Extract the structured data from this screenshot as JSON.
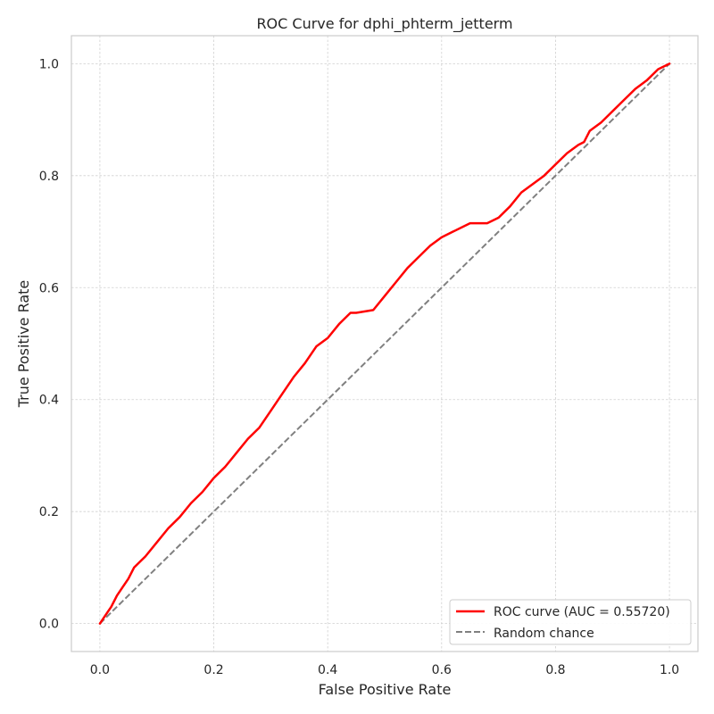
{
  "chart_data": {
    "type": "line",
    "title": "ROC Curve for dphi_phterm_jetterm",
    "xlabel": "False Positive Rate",
    "ylabel": "True Positive Rate",
    "xlim": [
      -0.05,
      1.05
    ],
    "ylim": [
      -0.05,
      1.05
    ],
    "xticks": [
      0.0,
      0.2,
      0.4,
      0.6,
      0.8,
      1.0
    ],
    "yticks": [
      0.0,
      0.2,
      0.4,
      0.6,
      0.8,
      1.0
    ],
    "xtick_labels": [
      "0.0",
      "0.2",
      "0.4",
      "0.6",
      "0.8",
      "1.0"
    ],
    "ytick_labels": [
      "0.0",
      "0.2",
      "0.4",
      "0.6",
      "0.8",
      "1.0"
    ],
    "grid": true,
    "legend_position": "bottom-right",
    "series": [
      {
        "name": "ROC curve (AUC = 0.55720)",
        "color": "#ff0000",
        "style": "solid",
        "x": [
          0.0,
          0.01,
          0.02,
          0.03,
          0.04,
          0.05,
          0.06,
          0.07,
          0.08,
          0.1,
          0.12,
          0.14,
          0.16,
          0.18,
          0.2,
          0.22,
          0.24,
          0.26,
          0.28,
          0.3,
          0.32,
          0.34,
          0.36,
          0.38,
          0.4,
          0.42,
          0.44,
          0.45,
          0.48,
          0.5,
          0.52,
          0.54,
          0.56,
          0.58,
          0.6,
          0.62,
          0.64,
          0.65,
          0.68,
          0.7,
          0.72,
          0.74,
          0.76,
          0.78,
          0.8,
          0.82,
          0.84,
          0.85,
          0.86,
          0.88,
          0.9,
          0.92,
          0.94,
          0.96,
          0.98,
          1.0
        ],
        "y": [
          0.0,
          0.015,
          0.03,
          0.05,
          0.065,
          0.08,
          0.1,
          0.11,
          0.12,
          0.145,
          0.17,
          0.19,
          0.215,
          0.235,
          0.26,
          0.28,
          0.305,
          0.33,
          0.35,
          0.38,
          0.41,
          0.44,
          0.465,
          0.495,
          0.51,
          0.535,
          0.555,
          0.555,
          0.56,
          0.585,
          0.61,
          0.635,
          0.655,
          0.675,
          0.69,
          0.7,
          0.71,
          0.715,
          0.715,
          0.725,
          0.745,
          0.77,
          0.785,
          0.8,
          0.82,
          0.84,
          0.855,
          0.86,
          0.88,
          0.895,
          0.915,
          0.935,
          0.955,
          0.97,
          0.99,
          1.0
        ]
      },
      {
        "name": "Random chance",
        "color": "#808080",
        "style": "dashed",
        "x": [
          0.0,
          1.0
        ],
        "y": [
          0.0,
          1.0
        ]
      }
    ]
  }
}
